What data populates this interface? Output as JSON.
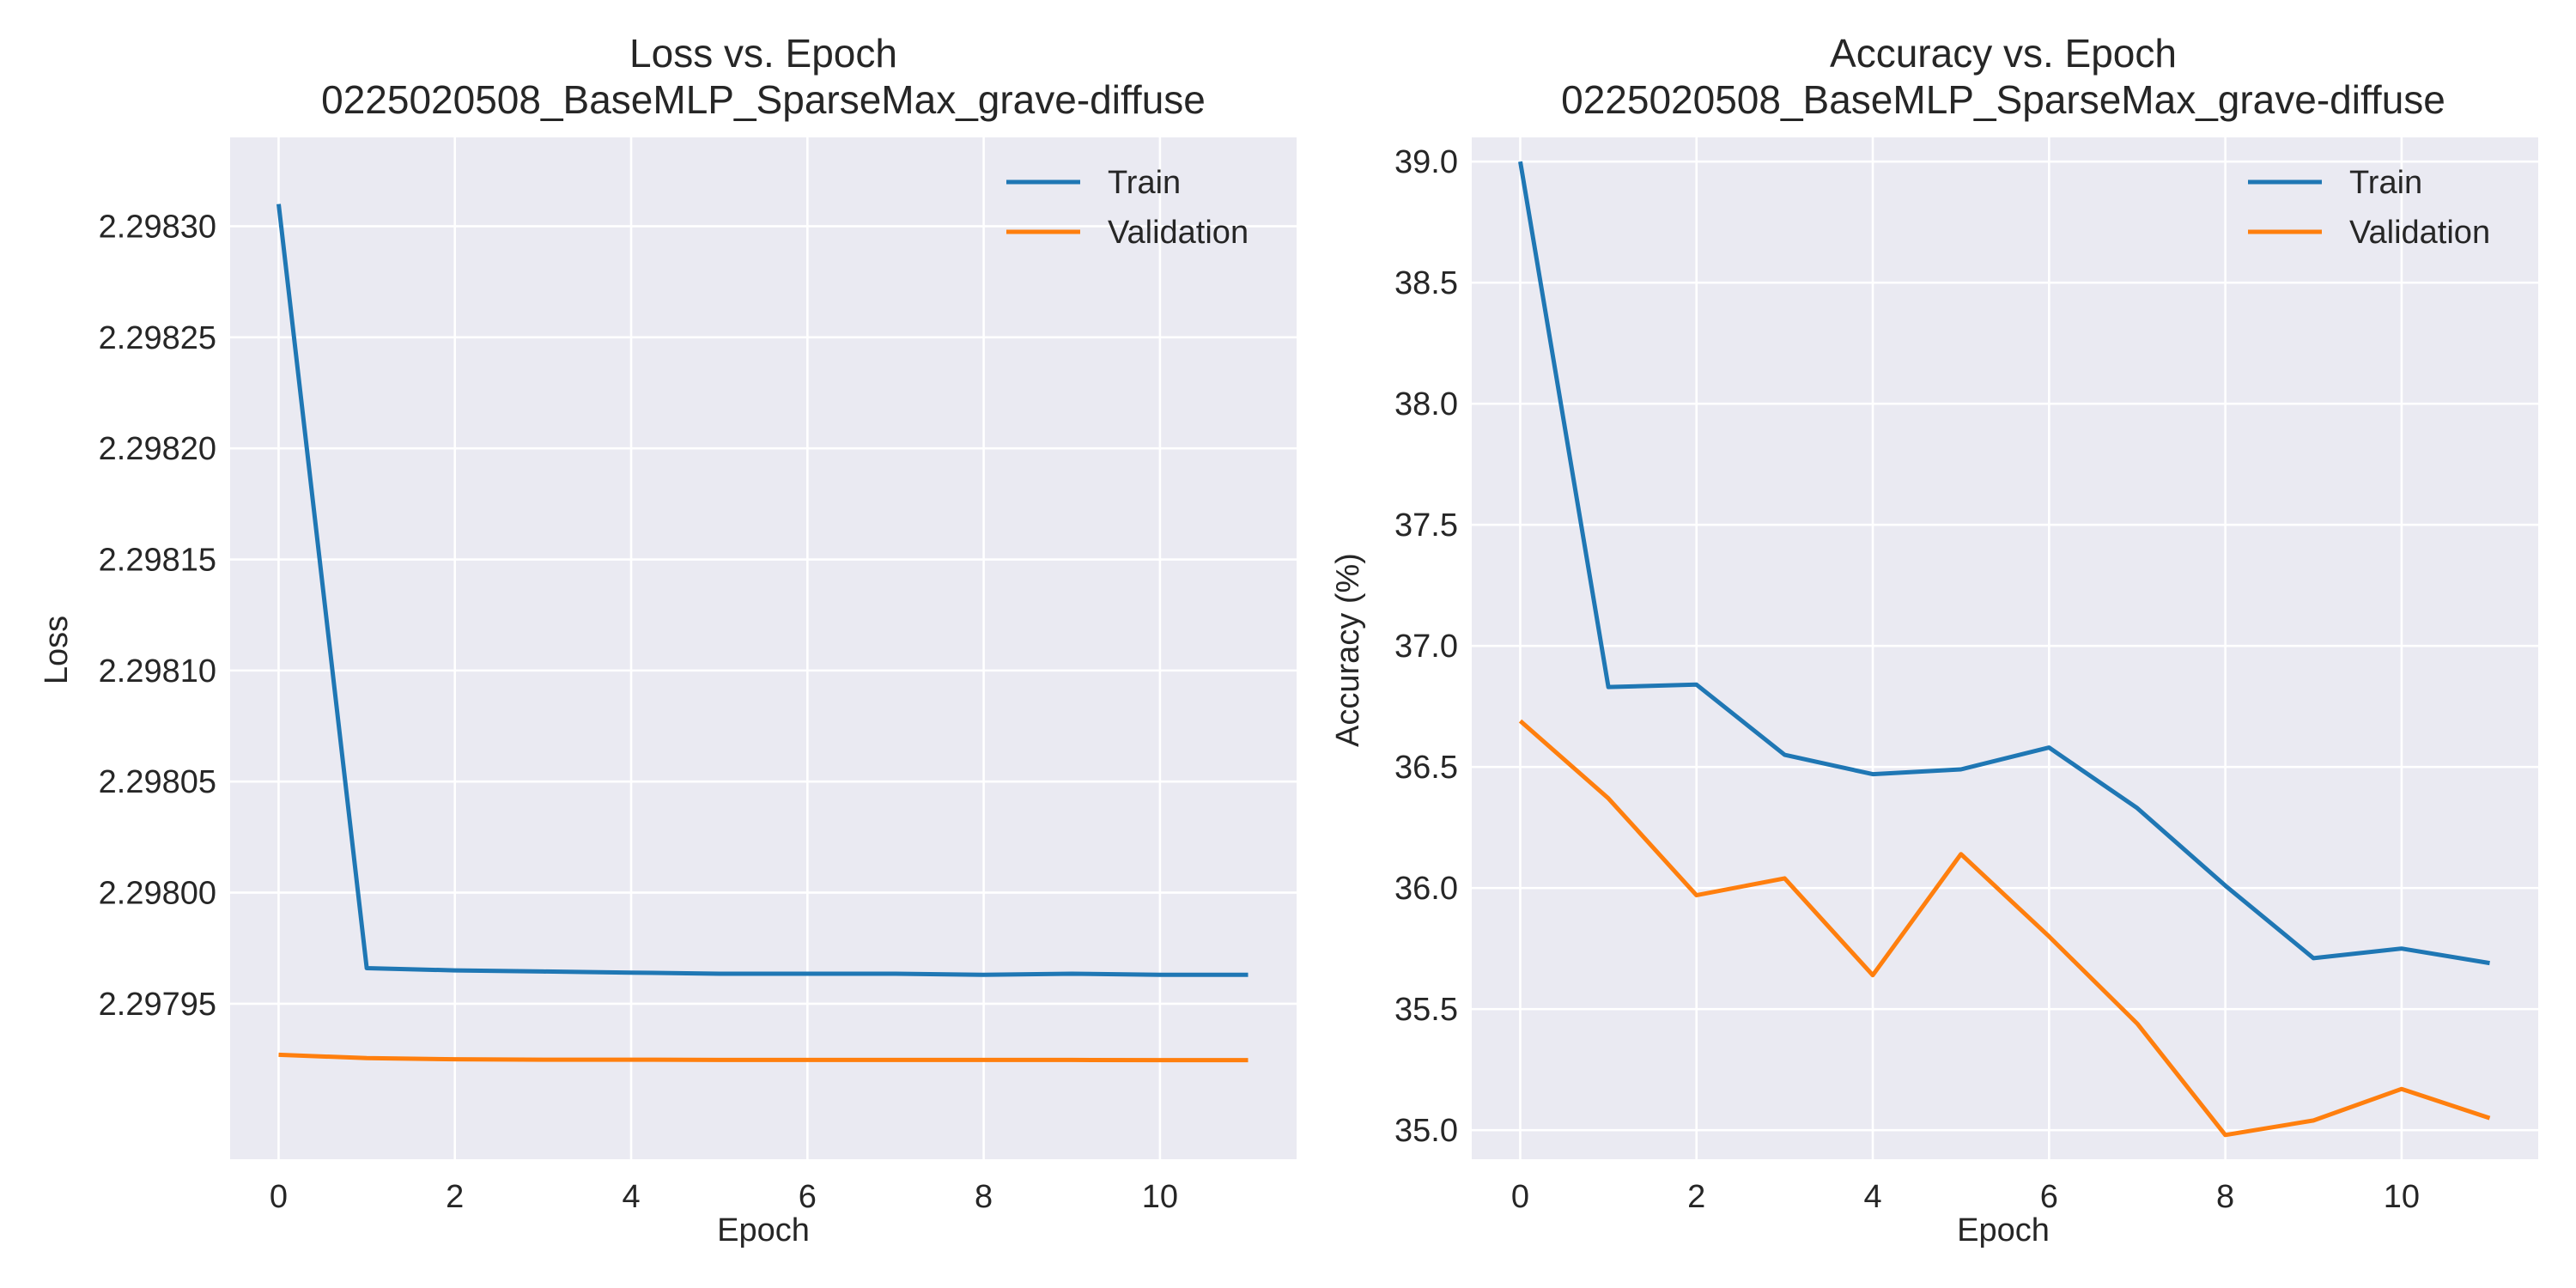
{
  "chart_data": [
    {
      "type": "line",
      "title": "Loss vs. Epoch",
      "subtitle": "0225020508_BaseMLP_SparseMax_grave-diffuse",
      "xlabel": "Epoch",
      "ylabel": "Loss",
      "xlim": [
        -0.55,
        11.55
      ],
      "ylim": [
        2.29788,
        2.29834
      ],
      "x_ticks": [
        0,
        2,
        4,
        6,
        8,
        10
      ],
      "x_tick_labels": [
        "0",
        "2",
        "4",
        "6",
        "8",
        "10"
      ],
      "y_ticks": [
        2.29795,
        2.298,
        2.29805,
        2.2981,
        2.29815,
        2.2982,
        2.29825,
        2.2983
      ],
      "y_tick_labels": [
        "2.29795",
        "2.29800",
        "2.29805",
        "2.29810",
        "2.29815",
        "2.29820",
        "2.29825",
        "2.29830"
      ],
      "grid": true,
      "legend_position": "top-right",
      "x": [
        0,
        1,
        2,
        3,
        4,
        5,
        6,
        7,
        8,
        9,
        10,
        11
      ],
      "series": [
        {
          "name": "Train",
          "color": "#1f77b4",
          "values": [
            2.29831,
            2.297966,
            2.297965,
            2.2979645,
            2.297964,
            2.2979635,
            2.2979635,
            2.2979635,
            2.297963,
            2.2979635,
            2.297963,
            2.297963
          ]
        },
        {
          "name": "Validation",
          "color": "#ff7f0e",
          "values": [
            2.297927,
            2.2979255,
            2.297925,
            2.2979248,
            2.2979248,
            2.2979247,
            2.2979247,
            2.2979247,
            2.2979247,
            2.2979247,
            2.2979246,
            2.2979246
          ]
        }
      ]
    },
    {
      "type": "line",
      "title": "Accuracy vs. Epoch",
      "subtitle": "0225020508_BaseMLP_SparseMax_grave-diffuse",
      "xlabel": "Epoch",
      "ylabel": "Accuracy (%)",
      "xlim": [
        -0.55,
        11.55
      ],
      "ylim": [
        34.88,
        39.1
      ],
      "x_ticks": [
        0,
        2,
        4,
        6,
        8,
        10
      ],
      "x_tick_labels": [
        "0",
        "2",
        "4",
        "6",
        "8",
        "10"
      ],
      "y_ticks": [
        35.0,
        35.5,
        36.0,
        36.5,
        37.0,
        37.5,
        38.0,
        38.5,
        39.0
      ],
      "y_tick_labels": [
        "35.0",
        "35.5",
        "36.0",
        "36.5",
        "37.0",
        "37.5",
        "38.0",
        "38.5",
        "39.0"
      ],
      "grid": true,
      "legend_position": "top-right",
      "x": [
        0,
        1,
        2,
        3,
        4,
        5,
        6,
        7,
        8,
        9,
        10,
        11
      ],
      "series": [
        {
          "name": "Train",
          "color": "#1f77b4",
          "values": [
            39.0,
            36.83,
            36.84,
            36.55,
            36.47,
            36.49,
            36.58,
            36.33,
            36.01,
            35.71,
            35.75,
            35.69
          ]
        },
        {
          "name": "Validation",
          "color": "#ff7f0e",
          "values": [
            36.69,
            36.37,
            35.97,
            36.04,
            35.64,
            36.14,
            35.8,
            35.44,
            34.98,
            35.04,
            35.17,
            35.05
          ]
        }
      ]
    }
  ]
}
